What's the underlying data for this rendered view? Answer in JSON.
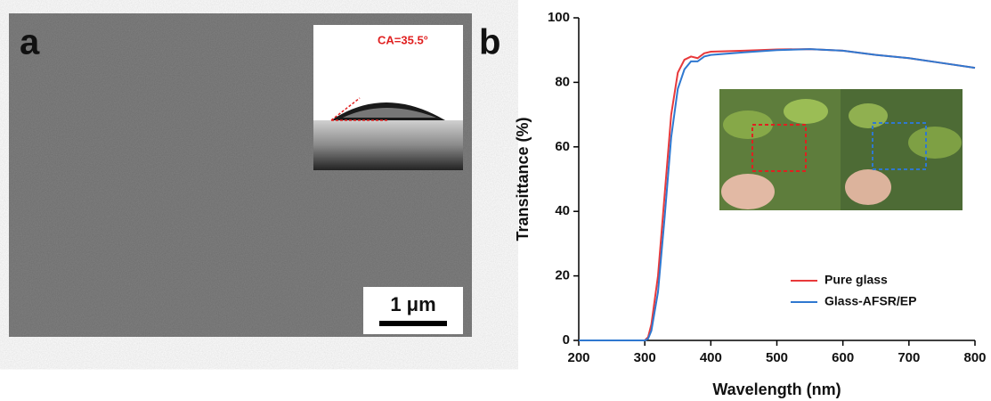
{
  "panel_labels": [
    "a",
    "b"
  ],
  "sem_image": {
    "contact_angle_label": "CA=35.5°",
    "scale_bar_label": "1 μm"
  },
  "chart_data": {
    "type": "line",
    "x_label": "Wavelength (nm)",
    "y_label": "Transittance (%)",
    "x": [
      200,
      250,
      300,
      305,
      310,
      320,
      330,
      340,
      350,
      360,
      370,
      380,
      390,
      400,
      450,
      500,
      550,
      600,
      650,
      700,
      750,
      800
    ],
    "series": [
      {
        "name": "Pure glass",
        "color": "#e8393b",
        "values": [
          0,
          0,
          0,
          1,
          5,
          20,
          45,
          70,
          83,
          87,
          88,
          87.5,
          89,
          89.5,
          89.8,
          90.2,
          90.3,
          89.8,
          88.5,
          87.5,
          86,
          84.5
        ]
      },
      {
        "name": "Glass-AFSR/EP",
        "color": "#2f78d0",
        "values": [
          0,
          0,
          0,
          0.5,
          3,
          15,
          38,
          63,
          78,
          84,
          86.5,
          86.5,
          88,
          88.5,
          89.3,
          90,
          90.3,
          89.8,
          88.5,
          87.5,
          86,
          84.5
        ]
      }
    ],
    "xlim": [
      200,
      800
    ],
    "xticks": [
      200,
      300,
      400,
      500,
      600,
      700,
      800
    ],
    "ylim": [
      0,
      100
    ],
    "yticks": [
      0,
      20,
      40,
      60,
      80,
      100
    ],
    "legend": "lower right"
  }
}
